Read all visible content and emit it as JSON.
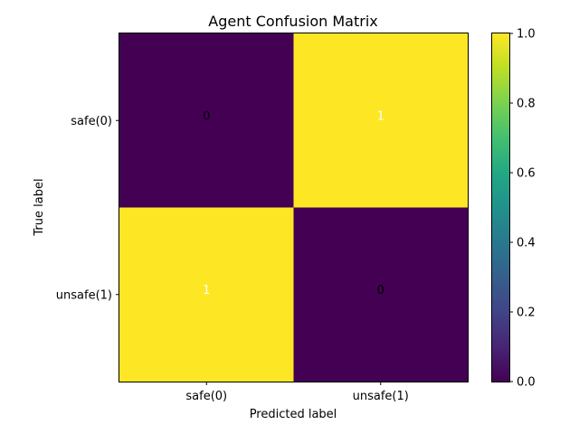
{
  "chart_data": {
    "type": "heatmap",
    "title": "Agent Confusion Matrix",
    "xlabel": "Predicted label",
    "ylabel": "True label",
    "x_categories": [
      "safe(0)",
      "unsafe(1)"
    ],
    "y_categories": [
      "safe(0)",
      "unsafe(1)"
    ],
    "values": [
      [
        0,
        1
      ],
      [
        1,
        0
      ]
    ],
    "value_range": [
      0,
      1
    ],
    "colormap": "viridis",
    "colors": {
      "low": "#440154",
      "high": "#fde725"
    },
    "colorbar": {
      "ticks": [
        0.0,
        0.2,
        0.4,
        0.6,
        0.8,
        1.0
      ],
      "tick_labels": [
        "0.0",
        "0.2",
        "0.4",
        "0.6",
        "0.8",
        "1.0"
      ]
    },
    "grid": false
  }
}
